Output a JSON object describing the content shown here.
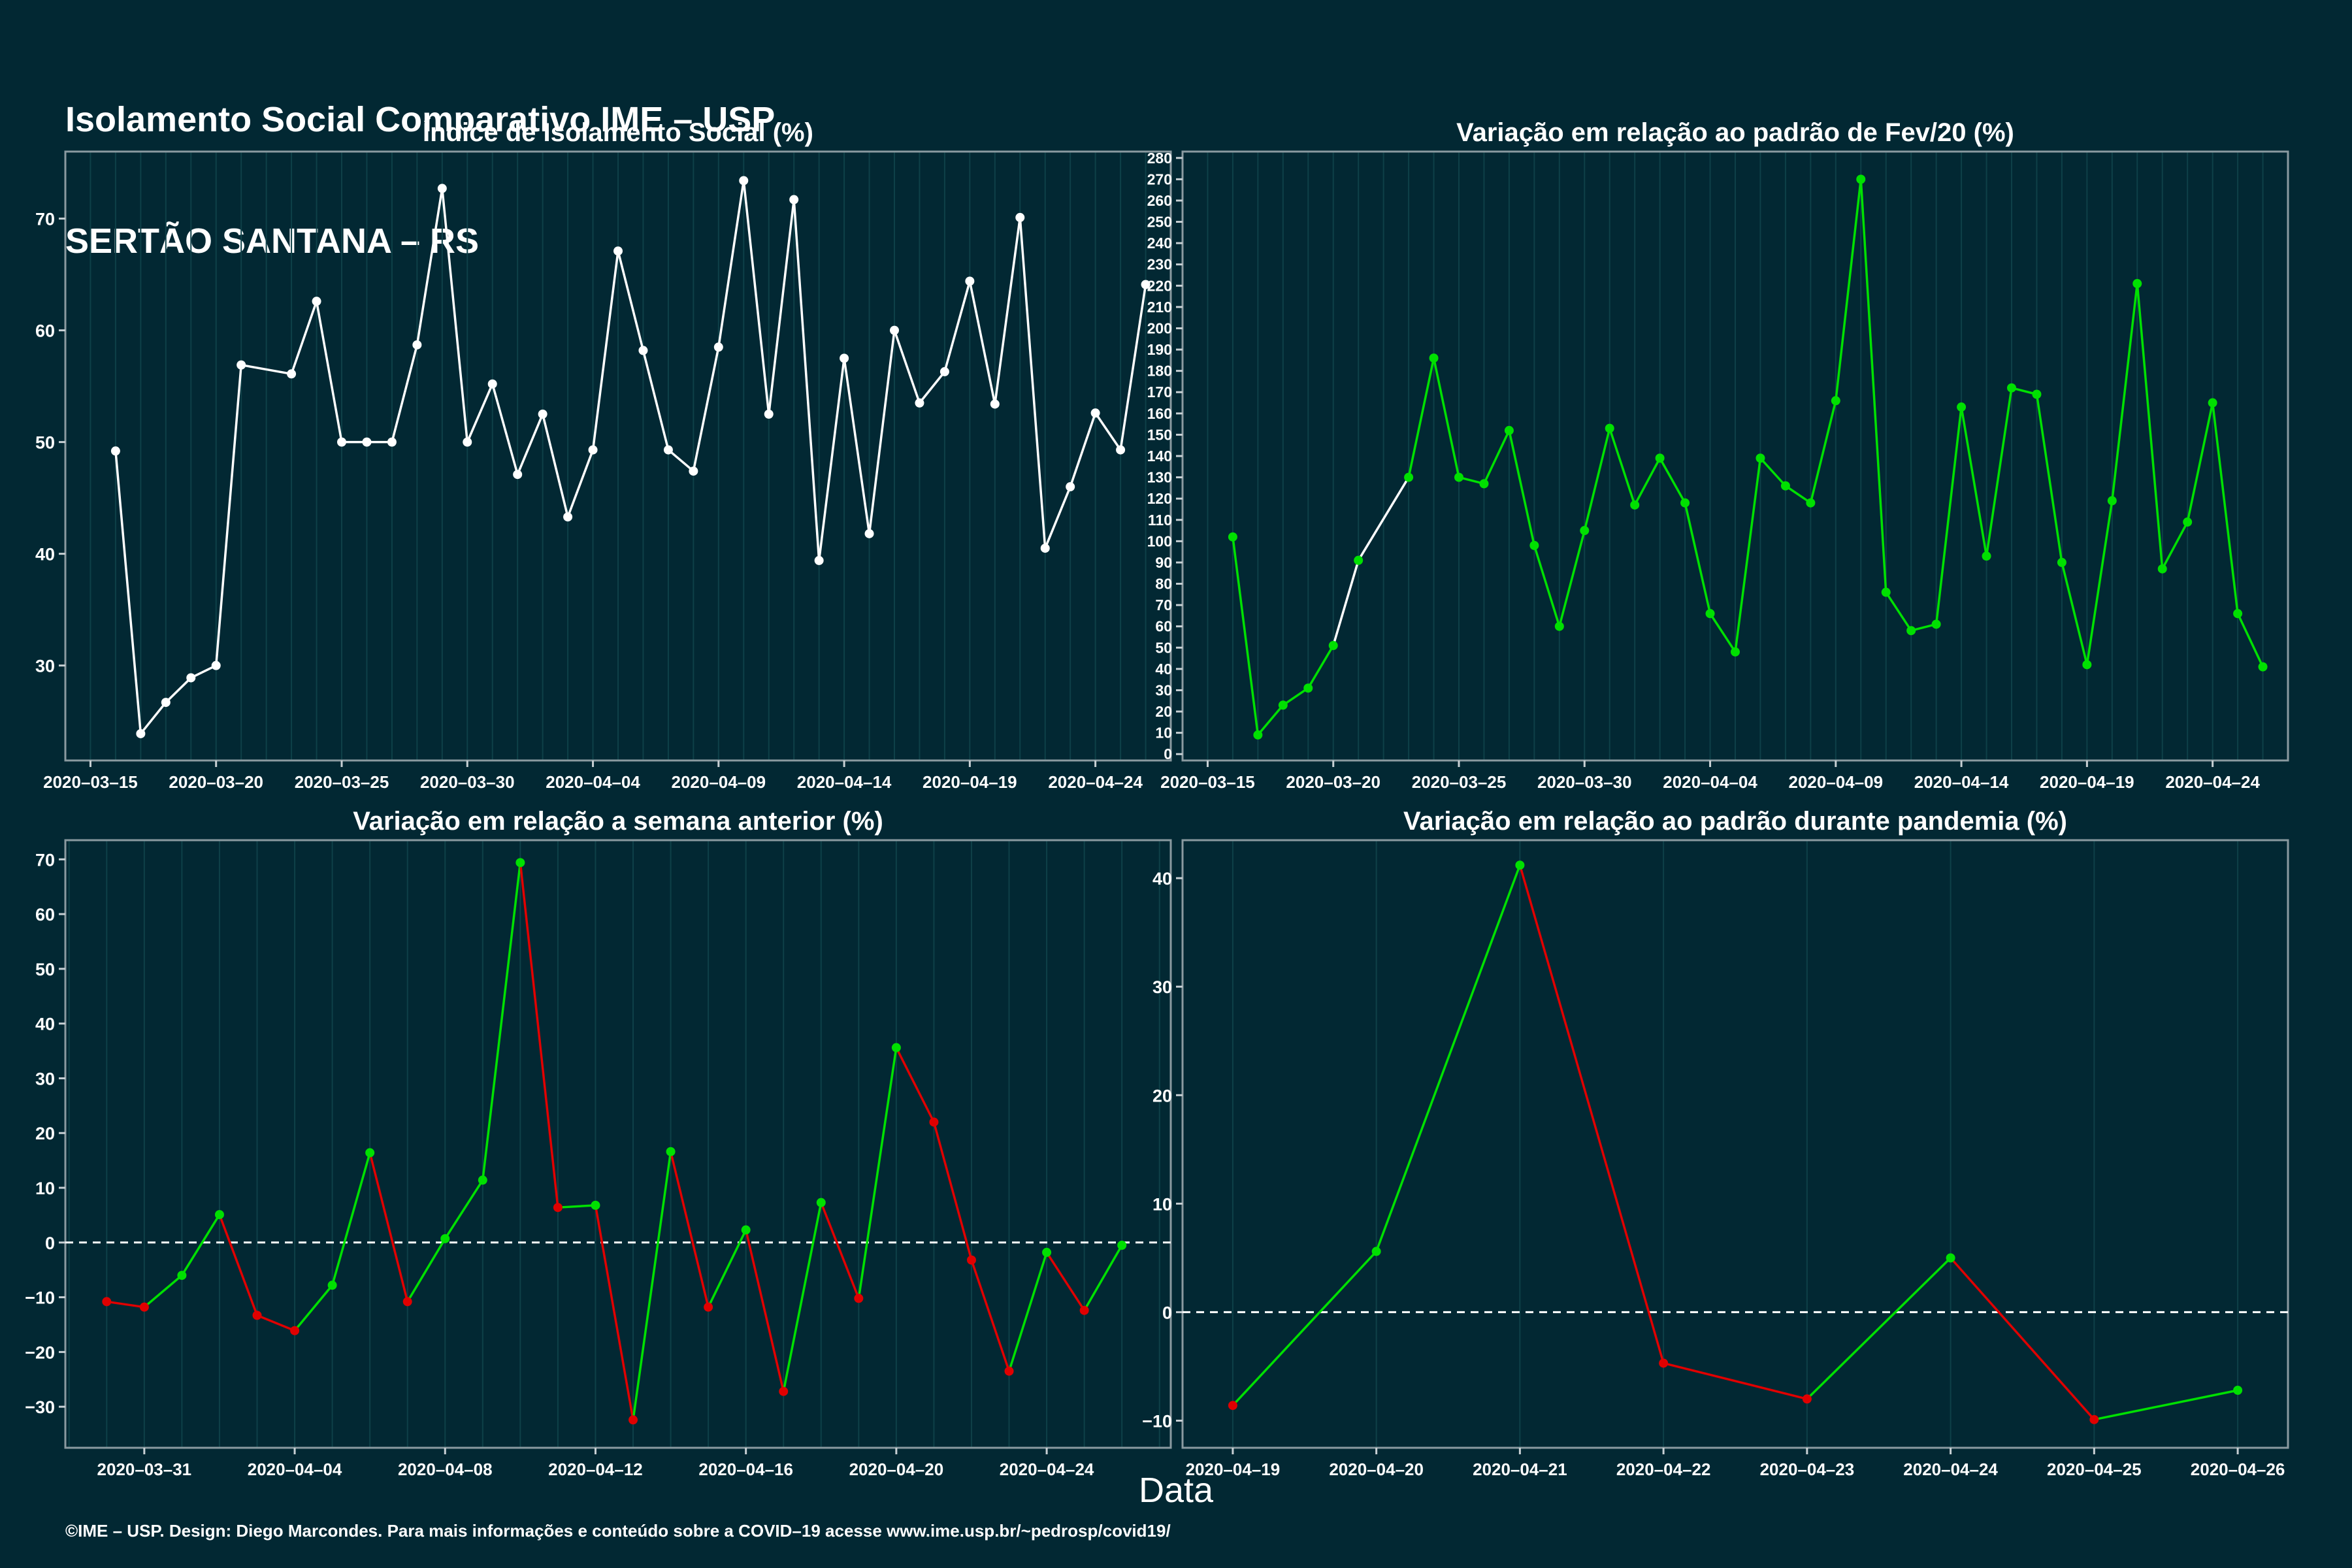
{
  "header": {
    "title_line1": "Isolamento Social Comparativo IME – USP",
    "title_line2": "SERTÃO SANTANA – RS"
  },
  "common_xlabel": "Data",
  "footer": "©IME – USP. Design: Diego Marcondes. Para mais informações e conteúdo sobre a COVID–19 acesse www.ime.usp.br/~pedrosp/covid19/",
  "colors": {
    "background": "#022833",
    "white_line": "#ffffff",
    "green": "#00e000",
    "red": "#e00000",
    "grid": "#0e4048"
  },
  "chart_data": [
    {
      "type": "line",
      "title": "Índice de Isolamento Social (%)",
      "ylim": [
        21.5,
        76
      ],
      "yticks": [
        30,
        40,
        50,
        60,
        70
      ],
      "xticks": [
        "2020–03–15",
        "2020–03–20",
        "2020–03–25",
        "2020–03–30",
        "2020–04–04",
        "2020–04–09",
        "2020–04–14",
        "2020–04–19",
        "2020–04–24"
      ],
      "xdomain": [
        "2020-03-14",
        "2020-04-27"
      ],
      "color_mode": "white",
      "dates": [
        "2020-03-16",
        "2020-03-17",
        "2020-03-18",
        "2020-03-19",
        "2020-03-20",
        "2020-03-21",
        "2020-03-23",
        "2020-03-24",
        "2020-03-25",
        "2020-03-26",
        "2020-03-27",
        "2020-03-28",
        "2020-03-29",
        "2020-03-30",
        "2020-03-31",
        "2020-04-01",
        "2020-04-02",
        "2020-04-03",
        "2020-04-04",
        "2020-04-05",
        "2020-04-06",
        "2020-04-07",
        "2020-04-08",
        "2020-04-09",
        "2020-04-10",
        "2020-04-11",
        "2020-04-12",
        "2020-04-13",
        "2020-04-14",
        "2020-04-15",
        "2020-04-16",
        "2020-04-17",
        "2020-04-18",
        "2020-04-19",
        "2020-04-20",
        "2020-04-21",
        "2020-04-22",
        "2020-04-23",
        "2020-04-24",
        "2020-04-25",
        "2020-04-26"
      ],
      "values": [
        49.2,
        23.9,
        26.7,
        28.9,
        30.0,
        56.9,
        56.1,
        62.6,
        50.0,
        50.0,
        50.0,
        58.7,
        72.7,
        50.0,
        55.2,
        47.1,
        52.5,
        43.3,
        49.3,
        67.1,
        58.2,
        49.3,
        47.4,
        58.5,
        73.4,
        52.5,
        71.7,
        39.4,
        57.5,
        41.8,
        60.0,
        53.5,
        56.3,
        64.4,
        53.4,
        70.1,
        40.5,
        46.0,
        52.6,
        49.3,
        64.1
      ]
    },
    {
      "type": "line",
      "title": "Variação em relação ao padrão de Fev/20 (%)",
      "ylim": [
        -3,
        283
      ],
      "yticks": [
        0,
        10,
        20,
        30,
        40,
        50,
        60,
        70,
        80,
        90,
        100,
        110,
        120,
        130,
        140,
        150,
        160,
        170,
        180,
        190,
        200,
        210,
        220,
        230,
        240,
        250,
        260,
        270,
        280
      ],
      "xticks": [
        "2020–03–15",
        "2020–03–20",
        "2020–03–25",
        "2020–03–30",
        "2020–04–04",
        "2020–04–09",
        "2020–04–14",
        "2020–04–19",
        "2020–04–24"
      ],
      "xdomain": [
        "2020-03-14",
        "2020-04-27"
      ],
      "color_mode": "green",
      "dates": [
        "2020-03-16",
        "2020-03-17",
        "2020-03-18",
        "2020-03-19",
        "2020-03-20",
        "2020-03-21",
        "2020-03-23",
        "2020-03-24",
        "2020-03-25",
        "2020-03-26",
        "2020-03-27",
        "2020-03-28",
        "2020-03-29",
        "2020-03-30",
        "2020-03-31",
        "2020-04-01",
        "2020-04-02",
        "2020-04-03",
        "2020-04-04",
        "2020-04-05",
        "2020-04-06",
        "2020-04-07",
        "2020-04-08",
        "2020-04-09",
        "2020-04-10",
        "2020-04-11",
        "2020-04-12",
        "2020-04-13",
        "2020-04-14",
        "2020-04-15",
        "2020-04-16",
        "2020-04-17",
        "2020-04-18",
        "2020-04-19",
        "2020-04-20",
        "2020-04-21",
        "2020-04-22",
        "2020-04-23",
        "2020-04-24",
        "2020-04-25",
        "2020-04-26"
      ],
      "values": [
        102,
        9,
        23,
        31,
        51,
        91,
        130,
        186,
        130,
        127,
        152,
        98,
        60,
        105,
        153,
        117,
        139,
        118,
        66,
        48,
        139,
        126,
        118,
        166,
        270,
        76,
        58,
        61,
        163,
        93,
        172,
        169,
        90,
        42,
        119,
        221,
        87,
        109,
        165,
        66,
        41
      ],
      "white_segments": [
        [
          4,
          5
        ],
        [
          5,
          6
        ]
      ]
    },
    {
      "type": "line",
      "title": "Variação em relação a semana anterior (%)",
      "ylim": [
        -37.5,
        73.5
      ],
      "yticks": [
        -30,
        -20,
        -10,
        0,
        10,
        20,
        30,
        40,
        50,
        60,
        70
      ],
      "xticks": [
        "2020–03–31",
        "2020–04–04",
        "2020–04–08",
        "2020–04–12",
        "2020–04–16",
        "2020–04–20",
        "2020–04–24"
      ],
      "xdomain": [
        "2020-03-28.9",
        "2020-04-27.3"
      ],
      "color_mode": "sign",
      "reference_line": 0,
      "dates": [
        "2020-03-30",
        "2020-03-31",
        "2020-04-01",
        "2020-04-02",
        "2020-04-03",
        "2020-04-04",
        "2020-04-05",
        "2020-04-06",
        "2020-04-07",
        "2020-04-08",
        "2020-04-09",
        "2020-04-10",
        "2020-04-11",
        "2020-04-12",
        "2020-04-13",
        "2020-04-14",
        "2020-04-15",
        "2020-04-16",
        "2020-04-17",
        "2020-04-18",
        "2020-04-19",
        "2020-04-20",
        "2020-04-21",
        "2020-04-22",
        "2020-04-23",
        "2020-04-24",
        "2020-04-25",
        "2020-04-26"
      ],
      "values": [
        -10.8,
        -11.8,
        -6.0,
        5.1,
        -13.3,
        -16.1,
        -7.8,
        16.4,
        -10.8,
        0.7,
        11.4,
        69.4,
        6.4,
        6.8,
        -32.4,
        16.6,
        -11.8,
        2.3,
        -27.2,
        7.3,
        -10.2,
        35.6,
        22.0,
        -3.2,
        -23.5,
        -1.8,
        -12.4,
        -0.5
      ]
    },
    {
      "type": "line",
      "title": "Variação em relação ao padrão durante pandemia (%)",
      "ylim": [
        -12.5,
        43.5
      ],
      "yticks": [
        -10,
        0,
        10,
        20,
        30,
        40
      ],
      "xticks": [
        "2020–04–19",
        "2020–04–20",
        "2020–04–21",
        "2020–04–22",
        "2020–04–23",
        "2020–04–24",
        "2020–04–25",
        "2020–04–26"
      ],
      "xdomain": [
        "2020-04-18.65",
        "2020-04-26.35"
      ],
      "color_mode": "sign",
      "reference_line": 0,
      "dates": [
        "2020-04-19",
        "2020-04-20",
        "2020-04-21",
        "2020-04-22",
        "2020-04-23",
        "2020-04-24",
        "2020-04-25",
        "2020-04-26"
      ],
      "values": [
        -8.6,
        5.6,
        41.2,
        -4.7,
        -8.0,
        5.0,
        -9.9,
        -7.2
      ]
    }
  ]
}
